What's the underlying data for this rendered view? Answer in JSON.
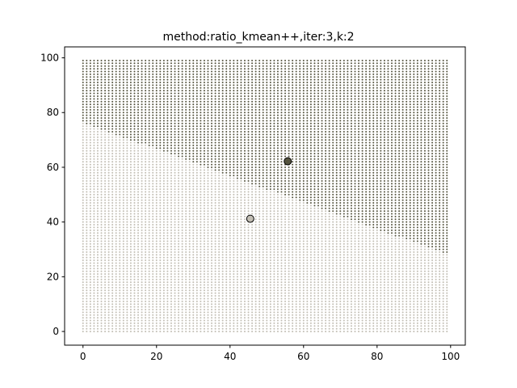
{
  "chart_data": {
    "type": "scatter",
    "title": "method:ratio_kmean++,iter:3,k:2",
    "xlabel": "",
    "ylabel": "",
    "xlim": [
      -5,
      104
    ],
    "ylim": [
      -5,
      104
    ],
    "xticks": [
      0,
      20,
      40,
      60,
      80,
      100
    ],
    "yticks": [
      0,
      20,
      40,
      60,
      80,
      100
    ],
    "grid": false,
    "legend": "none",
    "grid_points": {
      "x_range": [
        0,
        99
      ],
      "y_range": [
        0,
        99
      ],
      "step": 1
    },
    "clusters": [
      {
        "id": 0,
        "color": "#c2beb4",
        "centroid": {
          "x": 45.5,
          "y": 41.2
        }
      },
      {
        "id": 1,
        "color": "#55543f",
        "centroid": {
          "x": 55.7,
          "y": 62.2
        }
      }
    ]
  }
}
